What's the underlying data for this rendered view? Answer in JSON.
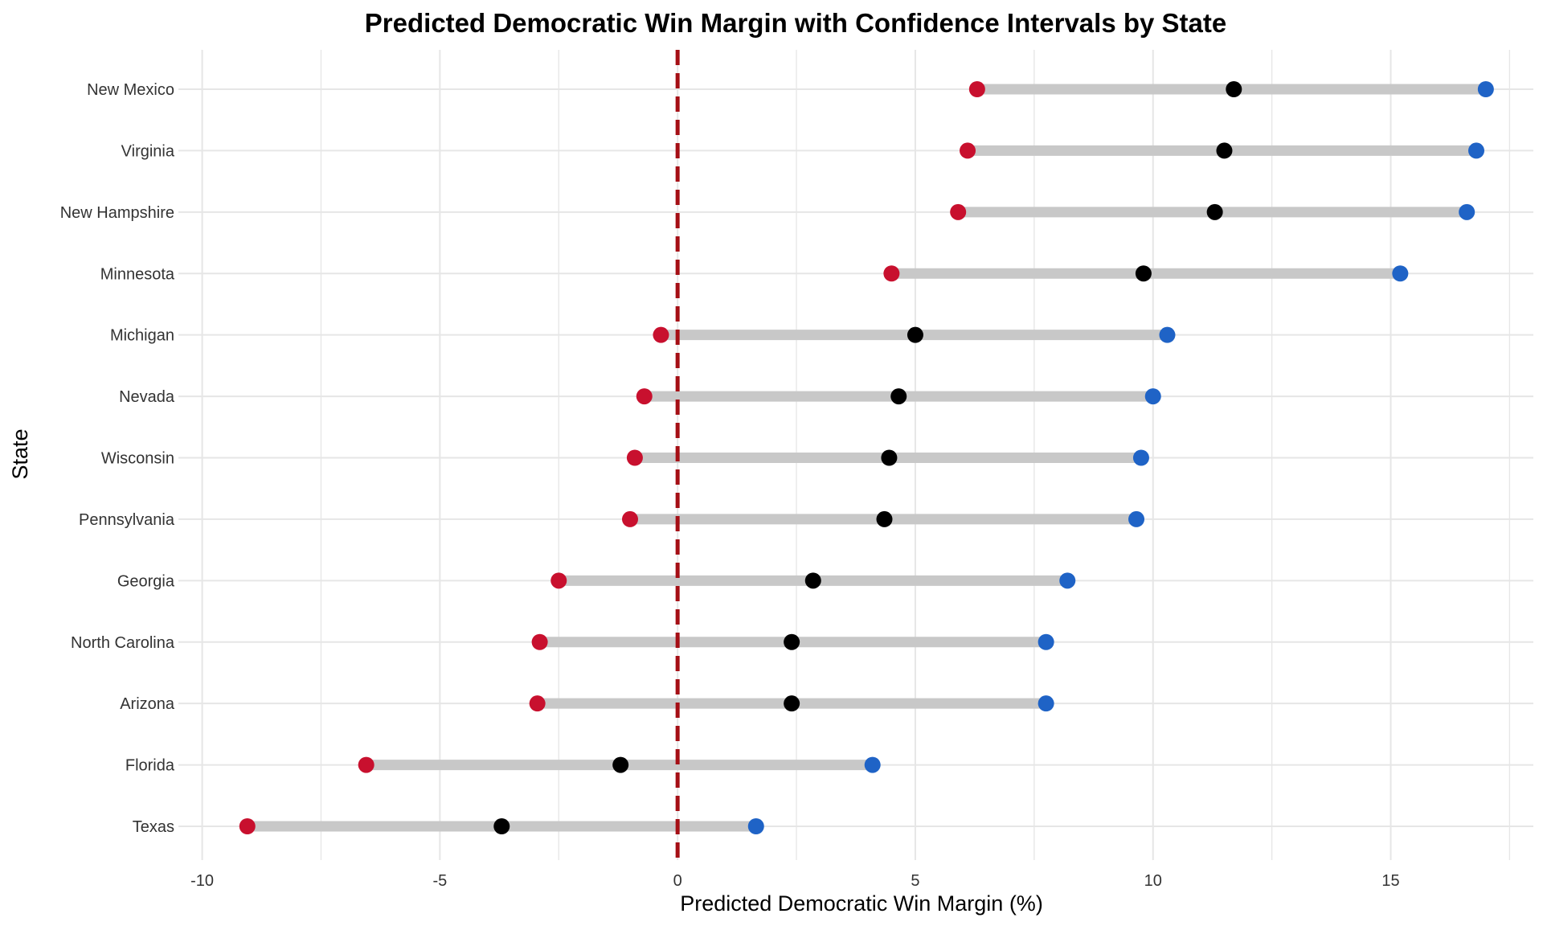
{
  "chart_data": {
    "type": "dumbbell",
    "title": "Predicted Democratic Win Margin with Confidence Intervals by State",
    "xlabel": "Predicted Democratic Win Margin (%)",
    "ylabel": "State",
    "xlim": [
      -10.5,
      18
    ],
    "xticks": [
      -10,
      -5,
      0,
      5,
      10,
      15
    ],
    "xtick_labels": [
      "-10",
      "-5",
      "0",
      "5",
      "10",
      "15"
    ],
    "grid": true,
    "reference_line": {
      "x": 0,
      "style": "dashed",
      "color": "#a50f15"
    },
    "colors": {
      "lower": "#c8102e",
      "point": "#000000",
      "upper": "#1f63c6",
      "range_bar": "#c8c8c8",
      "grid": "#e6e6e6"
    },
    "rows": [
      {
        "state": "New Mexico",
        "lower": 6.3,
        "estimate": 11.7,
        "upper": 17.0
      },
      {
        "state": "Virginia",
        "lower": 6.1,
        "estimate": 11.5,
        "upper": 16.8
      },
      {
        "state": "New Hampshire",
        "lower": 5.9,
        "estimate": 11.3,
        "upper": 16.6
      },
      {
        "state": "Minnesota",
        "lower": 4.5,
        "estimate": 9.8,
        "upper": 15.2
      },
      {
        "state": "Michigan",
        "lower": -0.35,
        "estimate": 5.0,
        "upper": 10.3
      },
      {
        "state": "Nevada",
        "lower": -0.7,
        "estimate": 4.65,
        "upper": 10.0
      },
      {
        "state": "Wisconsin",
        "lower": -0.9,
        "estimate": 4.45,
        "upper": 9.75
      },
      {
        "state": "Pennsylvania",
        "lower": -1.0,
        "estimate": 4.35,
        "upper": 9.65
      },
      {
        "state": "Georgia",
        "lower": -2.5,
        "estimate": 2.85,
        "upper": 8.2
      },
      {
        "state": "North Carolina",
        "lower": -2.9,
        "estimate": 2.4,
        "upper": 7.75
      },
      {
        "state": "Arizona",
        "lower": -2.95,
        "estimate": 2.4,
        "upper": 7.75
      },
      {
        "state": "Florida",
        "lower": -6.55,
        "estimate": -1.2,
        "upper": 4.1
      },
      {
        "state": "Texas",
        "lower": -9.05,
        "estimate": -3.7,
        "upper": 1.65
      }
    ]
  }
}
